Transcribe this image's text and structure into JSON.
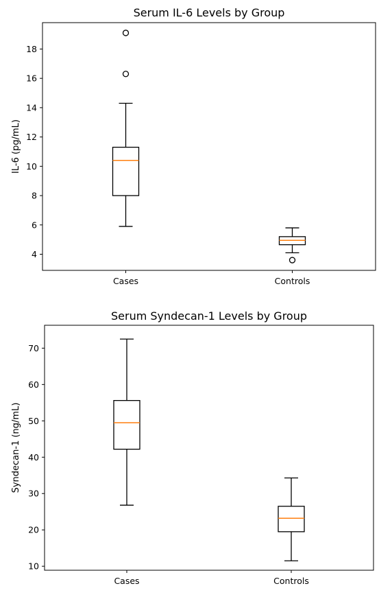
{
  "chart_data": [
    {
      "type": "box",
      "title": "Serum IL-6 Levels by Group",
      "xlabel": "",
      "ylabel": "IL-6 (pg/mL)",
      "ylim": [
        2.9,
        19.8
      ],
      "yticks": [
        4,
        6,
        8,
        10,
        12,
        14,
        16,
        18
      ],
      "categories": [
        "Cases",
        "Controls"
      ],
      "boxes": [
        {
          "category": "Cases",
          "whisker_low": 5.9,
          "q1": 8.0,
          "median": 10.4,
          "q3": 11.3,
          "whisker_high": 14.3,
          "outliers": [
            16.3,
            19.1
          ]
        },
        {
          "category": "Controls",
          "whisker_low": 4.1,
          "q1": 4.65,
          "median": 4.95,
          "q3": 5.2,
          "whisker_high": 5.8,
          "outliers": [
            3.6
          ]
        }
      ],
      "grid": false
    },
    {
      "type": "box",
      "title": "Serum Syndecan-1 Levels by Group",
      "xlabel": "",
      "ylabel": "Syndecan-1 (ng/mL)",
      "ylim": [
        8.9,
        76.3
      ],
      "yticks": [
        10,
        20,
        30,
        40,
        50,
        60,
        70
      ],
      "categories": [
        "Cases",
        "Controls"
      ],
      "boxes": [
        {
          "category": "Cases",
          "whisker_low": 26.8,
          "q1": 42.2,
          "median": 49.5,
          "q3": 55.6,
          "whisker_high": 72.5,
          "outliers": []
        },
        {
          "category": "Controls",
          "whisker_low": 11.5,
          "q1": 19.5,
          "median": 23.2,
          "q3": 26.5,
          "whisker_high": 34.3,
          "outliers": []
        }
      ],
      "grid": false
    }
  ]
}
